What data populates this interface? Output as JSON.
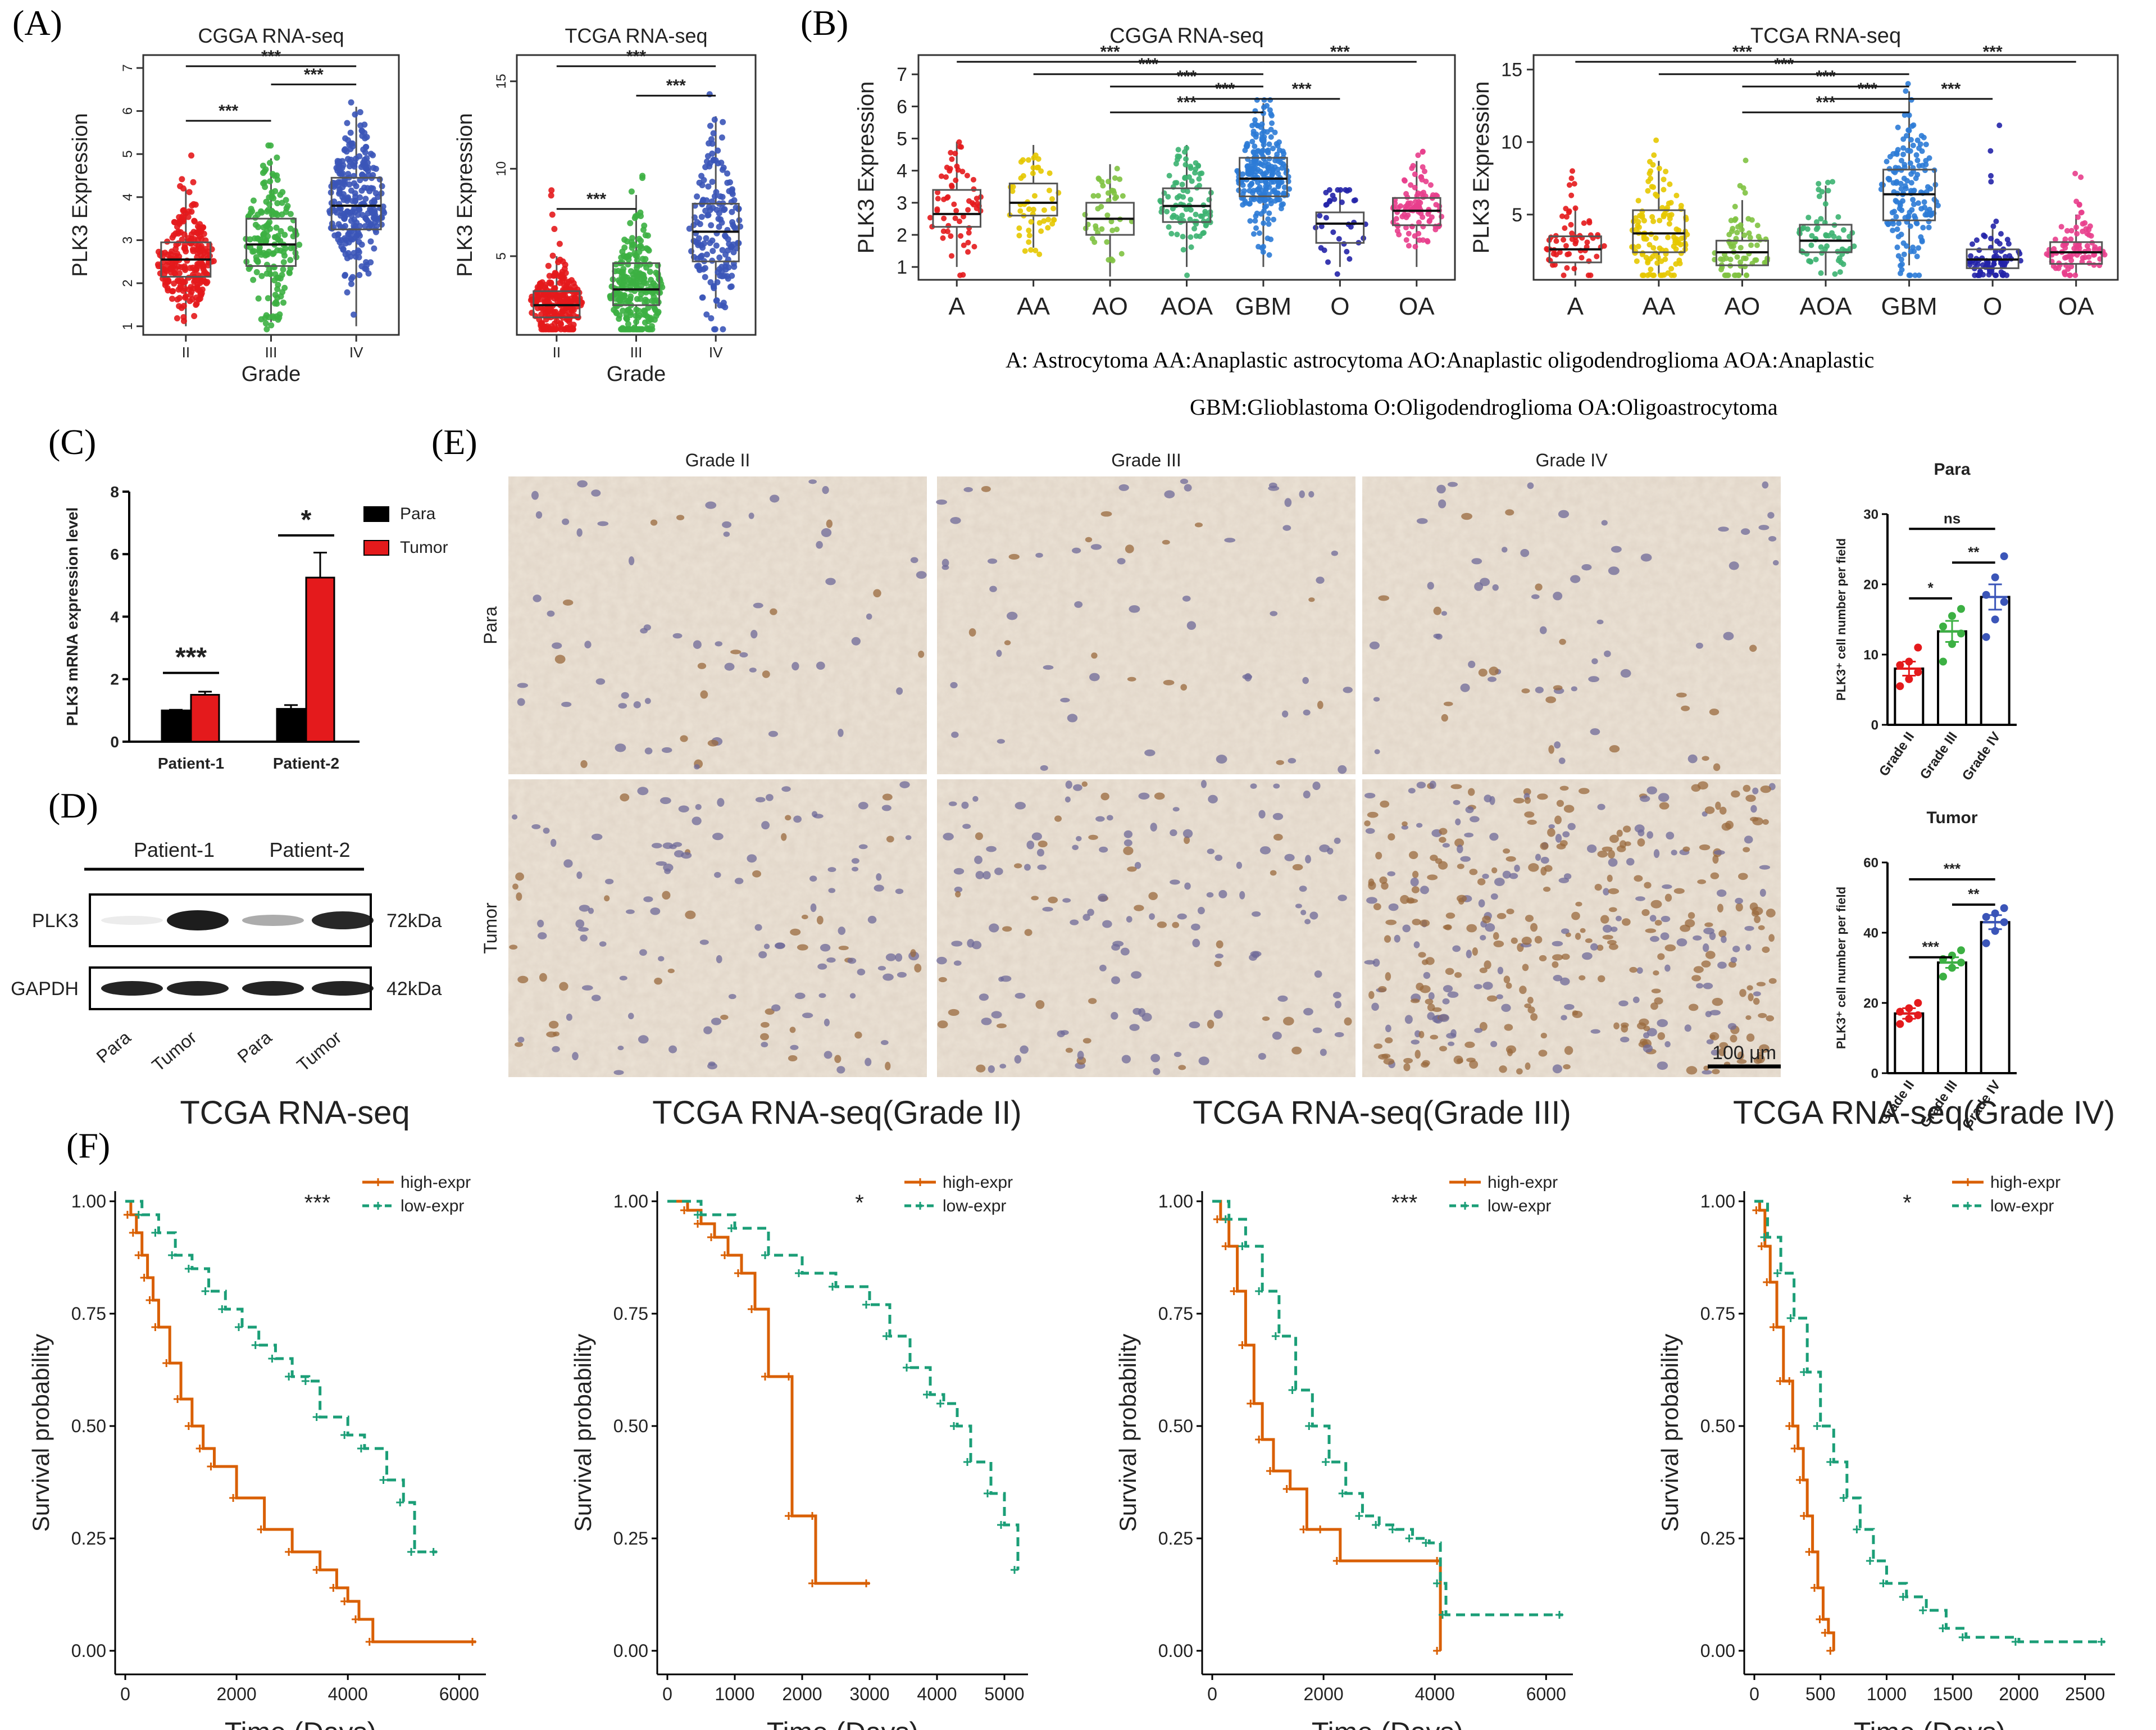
{
  "figure": {
    "panel_labels": [
      "(A)",
      "(B)",
      "(C)",
      "(D)",
      "(E)",
      "(F)"
    ],
    "colors": {
      "II": "#e41a1c",
      "III": "#3cb043",
      "IV": "#3b55b8",
      "A": "#e41a1c",
      "AA": "#e6c800",
      "AO": "#7fc241",
      "AOA": "#3cb371",
      "GBM": "#2c7bd6",
      "O": "#2323a8",
      "OA": "#e83e8c",
      "para_bar": "#000000",
      "tumor_bar": "#e41a1c",
      "km_high": "#d95f02",
      "km_low": "#1b9e77"
    }
  },
  "panel_a": {
    "charts": [
      {
        "title": "CGGA RNA-seq",
        "ylabel": "PLK3 Expression",
        "xlabel": "Grade",
        "yticks": [
          "1",
          "2",
          "3",
          "4",
          "5",
          "6",
          "7"
        ],
        "ylim": [
          0.8,
          7.3
        ],
        "categories": [
          "II",
          "III",
          "IV"
        ],
        "boxes": [
          {
            "q1": 2.15,
            "med": 2.55,
            "q3": 2.95,
            "lo": 1.0,
            "hi": 4.2,
            "n": 230,
            "maxv": 5.2
          },
          {
            "q1": 2.4,
            "med": 2.9,
            "q3": 3.5,
            "lo": 1.1,
            "hi": 4.9,
            "n": 170,
            "maxv": 5.2
          },
          {
            "q1": 3.25,
            "med": 3.8,
            "q3": 4.45,
            "lo": 1.0,
            "hi": 6.1,
            "n": 260,
            "maxv": 6.2
          }
        ],
        "sig": [
          "***",
          "***",
          "***"
        ]
      },
      {
        "title": "TCGA RNA-seq",
        "ylabel": "PLK3 Expression",
        "xlabel": "Grade",
        "yticks": [
          "5",
          "10",
          "15"
        ],
        "ylim": [
          0.5,
          16.5
        ],
        "categories": [
          "II",
          "III",
          "IV"
        ],
        "boxes": [
          {
            "q1": 1.5,
            "med": 2.2,
            "q3": 3.0,
            "lo": 0.8,
            "hi": 5.0,
            "n": 250,
            "maxv": 9.5
          },
          {
            "q1": 2.2,
            "med": 3.1,
            "q3": 4.6,
            "lo": 0.8,
            "hi": 8.5,
            "n": 250,
            "maxv": 10.5
          },
          {
            "q1": 4.7,
            "med": 6.4,
            "q3": 8.0,
            "lo": 2.0,
            "hi": 13.0,
            "n": 170,
            "maxv": 14.8
          }
        ],
        "sig": [
          "***",
          "***",
          "***"
        ]
      }
    ]
  },
  "panel_b": {
    "charts": [
      {
        "title": "CGGA RNA-seq",
        "ylabel": "PLK3 Expression",
        "yticks": [
          "1",
          "2",
          "3",
          "4",
          "5",
          "6",
          "7"
        ],
        "ylim": [
          0.6,
          7.6
        ],
        "categories": [
          "A",
          "AA",
          "AO",
          "AOA",
          "GBM",
          "O",
          "OA"
        ],
        "boxes": [
          {
            "q1": 2.25,
            "med": 2.65,
            "q3": 3.4,
            "lo": 1.0,
            "hi": 4.9,
            "n": 60,
            "maxv": 4.9
          },
          {
            "q1": 2.6,
            "med": 3.0,
            "q3": 3.6,
            "lo": 1.6,
            "hi": 4.8,
            "n": 50,
            "maxv": 5.3
          },
          {
            "q1": 2.0,
            "med": 2.5,
            "q3": 3.0,
            "lo": 0.7,
            "hi": 4.2,
            "n": 40,
            "maxv": 4.2
          },
          {
            "q1": 2.4,
            "med": 2.9,
            "q3": 3.45,
            "lo": 1.0,
            "hi": 4.8,
            "n": 90,
            "maxv": 4.9
          },
          {
            "q1": 3.2,
            "med": 3.75,
            "q3": 4.4,
            "lo": 1.0,
            "hi": 6.1,
            "n": 250,
            "maxv": 6.2
          },
          {
            "q1": 1.75,
            "med": 2.35,
            "q3": 2.7,
            "lo": 1.0,
            "hi": 3.4,
            "n": 35,
            "maxv": 3.4
          },
          {
            "q1": 2.3,
            "med": 2.75,
            "q3": 3.15,
            "lo": 1.0,
            "hi": 4.3,
            "n": 100,
            "maxv": 5.0
          }
        ],
        "sig": [
          "***",
          "***",
          "***",
          "***",
          "***",
          "***",
          "***"
        ]
      },
      {
        "title": "TCGA RNA-seq",
        "ylabel": "PLK3 Expression",
        "yticks": [
          "5",
          "10",
          "15"
        ],
        "ylim": [
          0.5,
          16.0
        ],
        "categories": [
          "A",
          "AA",
          "AO",
          "AOA",
          "GBM",
          "O",
          "OA"
        ],
        "boxes": [
          {
            "q1": 1.7,
            "med": 2.6,
            "q3": 3.5,
            "lo": 0.8,
            "hi": 5.5,
            "n": 60,
            "maxv": 9.0
          },
          {
            "q1": 2.4,
            "med": 3.7,
            "q3": 5.3,
            "lo": 0.8,
            "hi": 8.7,
            "n": 120,
            "maxv": 10.5
          },
          {
            "q1": 1.5,
            "med": 2.4,
            "q3": 3.2,
            "lo": 0.8,
            "hi": 6.0,
            "n": 70,
            "maxv": 9.9
          },
          {
            "q1": 2.4,
            "med": 3.2,
            "q3": 4.3,
            "lo": 0.8,
            "hi": 7.0,
            "n": 60,
            "maxv": 7.5
          },
          {
            "q1": 4.6,
            "med": 6.4,
            "q3": 8.1,
            "lo": 1.5,
            "hi": 13.5,
            "n": 160,
            "maxv": 14.5
          },
          {
            "q1": 1.3,
            "med": 1.9,
            "q3": 2.6,
            "lo": 0.8,
            "hi": 4.0,
            "n": 80,
            "maxv": 11.3
          },
          {
            "q1": 1.6,
            "med": 2.4,
            "q3": 3.1,
            "lo": 0.8,
            "hi": 5.0,
            "n": 90,
            "maxv": 9.0
          }
        ],
        "sig": [
          "***",
          "***",
          "***",
          "***",
          "***",
          "***",
          "***"
        ]
      }
    ],
    "legend_line1": "A: Astrocytoma    AA:Anaplastic astrocytoma    AO:Anaplastic oligodendroglioma    AOA:Anaplastic",
    "legend_line2": "GBM:Glioblastoma  O:Oligodendroglioma  OA:Oligoastrocytoma"
  },
  "panel_c": {
    "ylabel": "PLK3 mRNA expression level",
    "yticks": [
      "0",
      "2",
      "4",
      "6",
      "8"
    ],
    "ylim": [
      0,
      8
    ],
    "categories": [
      "Patient-1",
      "Patient-2"
    ],
    "series": [
      {
        "name": "Para",
        "values": [
          1.0,
          1.05
        ],
        "err": [
          0.02,
          0.12
        ]
      },
      {
        "name": "Tumor",
        "values": [
          1.5,
          5.25
        ],
        "err": [
          0.1,
          0.8
        ]
      }
    ],
    "sig": [
      "***",
      "*"
    ]
  },
  "panel_d": {
    "groups": [
      "Patient-1",
      "Patient-2"
    ],
    "rows": [
      {
        "name": "PLK3",
        "kda": "72kDa"
      },
      {
        "name": "GAPDH",
        "kda": "42kDa"
      }
    ],
    "lanes": [
      "Para",
      "Tumor",
      "Para",
      "Tumor"
    ]
  },
  "panel_e": {
    "col_labels": [
      "Grade II",
      "Grade III",
      "Grade IV"
    ],
    "row_labels": [
      "Para",
      "Tumor"
    ],
    "scale_bar": "100 μm",
    "charts": [
      {
        "title": "Para",
        "ylabel": "PLK3⁺ cell number per field",
        "yticks": [
          "0",
          "10",
          "20",
          "30"
        ],
        "ylim": [
          0,
          30
        ],
        "categories": [
          "Grade II",
          "Grade III",
          "Grade IV"
        ],
        "values": [
          8,
          13.3,
          18.2
        ],
        "err": [
          1.0,
          1.5,
          1.8
        ],
        "points": [
          [
            5.5,
            6.5,
            7.5,
            8.5,
            9.0,
            11.0
          ],
          [
            9.0,
            11.5,
            13.0,
            14.0,
            15.5,
            16.5
          ],
          [
            12.5,
            15.0,
            17.5,
            18.5,
            21.0,
            24.0
          ]
        ],
        "sig": [
          "*",
          "**",
          "ns"
        ]
      },
      {
        "title": "Tumor",
        "ylabel": "PLK3⁺ cell number per field",
        "yticks": [
          "0",
          "20",
          "40",
          "60"
        ],
        "ylim": [
          0,
          60
        ],
        "categories": [
          "Grade II",
          "Grade III",
          "Grade IV"
        ],
        "values": [
          17,
          31.5,
          43
        ],
        "err": [
          1.5,
          1.5,
          2.0
        ],
        "points": [
          [
            14.0,
            15.5,
            16.5,
            17.5,
            18.5,
            20.0
          ],
          [
            27.5,
            30.0,
            31.5,
            32.5,
            33.5,
            35.0
          ],
          [
            37.0,
            40.5,
            43.0,
            44.5,
            45.5,
            47.0
          ]
        ],
        "sig": [
          "***",
          "**",
          "***"
        ]
      }
    ]
  },
  "panel_f": {
    "ylabel": "Survival probability",
    "xlabel": "Time (Days)",
    "yticks": [
      "0.00",
      "0.25",
      "0.50",
      "0.75",
      "1.00"
    ],
    "legend": {
      "high": "high-expr",
      "low": "low-expr"
    },
    "charts": [
      {
        "title": "TCGA RNA-seq",
        "sig": "***",
        "xticks": [
          "0",
          "2000",
          "4000",
          "6000"
        ],
        "xmax": 6300,
        "high": [
          [
            0,
            1.0
          ],
          [
            100,
            0.97
          ],
          [
            200,
            0.93
          ],
          [
            300,
            0.88
          ],
          [
            400,
            0.83
          ],
          [
            500,
            0.78
          ],
          [
            600,
            0.72
          ],
          [
            800,
            0.64
          ],
          [
            1000,
            0.56
          ],
          [
            1200,
            0.5
          ],
          [
            1400,
            0.45
          ],
          [
            1600,
            0.41
          ],
          [
            2000,
            0.34
          ],
          [
            2500,
            0.27
          ],
          [
            3000,
            0.22
          ],
          [
            3500,
            0.18
          ],
          [
            3800,
            0.14
          ],
          [
            4000,
            0.11
          ],
          [
            4200,
            0.07
          ],
          [
            4450,
            0.02
          ],
          [
            6300,
            0.02
          ]
        ],
        "low": [
          [
            0,
            1.0
          ],
          [
            300,
            0.97
          ],
          [
            600,
            0.93
          ],
          [
            900,
            0.88
          ],
          [
            1200,
            0.85
          ],
          [
            1500,
            0.8
          ],
          [
            1800,
            0.76
          ],
          [
            2100,
            0.72
          ],
          [
            2400,
            0.68
          ],
          [
            2700,
            0.65
          ],
          [
            3000,
            0.61
          ],
          [
            3300,
            0.6
          ],
          [
            3500,
            0.52
          ],
          [
            4000,
            0.48
          ],
          [
            4300,
            0.45
          ],
          [
            4700,
            0.38
          ],
          [
            5000,
            0.33
          ],
          [
            5200,
            0.22
          ],
          [
            5600,
            0.22
          ]
        ]
      },
      {
        "title": "TCGA RNA-seq(Grade II)",
        "sig": "*",
        "xticks": [
          "0",
          "1000",
          "2000",
          "3000",
          "4000",
          "5000"
        ],
        "xmax": 5200,
        "high": [
          [
            0,
            1.0
          ],
          [
            300,
            0.98
          ],
          [
            500,
            0.95
          ],
          [
            700,
            0.92
          ],
          [
            900,
            0.88
          ],
          [
            1100,
            0.84
          ],
          [
            1300,
            0.76
          ],
          [
            1500,
            0.61
          ],
          [
            1850,
            0.61
          ],
          [
            1850,
            0.3
          ],
          [
            2200,
            0.3
          ],
          [
            2200,
            0.15
          ],
          [
            3000,
            0.15
          ]
        ],
        "low": [
          [
            0,
            1.0
          ],
          [
            500,
            0.97
          ],
          [
            1000,
            0.94
          ],
          [
            1500,
            0.88
          ],
          [
            2000,
            0.84
          ],
          [
            2500,
            0.81
          ],
          [
            3000,
            0.77
          ],
          [
            3300,
            0.7
          ],
          [
            3600,
            0.63
          ],
          [
            3900,
            0.57
          ],
          [
            4100,
            0.55
          ],
          [
            4300,
            0.5
          ],
          [
            4500,
            0.42
          ],
          [
            4800,
            0.35
          ],
          [
            5000,
            0.28
          ],
          [
            5200,
            0.18
          ]
        ]
      },
      {
        "title": "TCGA RNA-seq(Grade III)",
        "sig": "***",
        "xticks": [
          "0",
          "2000",
          "4000",
          "6000"
        ],
        "xmax": 6300,
        "high": [
          [
            0,
            1.0
          ],
          [
            150,
            0.96
          ],
          [
            300,
            0.9
          ],
          [
            450,
            0.8
          ],
          [
            600,
            0.68
          ],
          [
            750,
            0.55
          ],
          [
            900,
            0.47
          ],
          [
            1100,
            0.4
          ],
          [
            1400,
            0.36
          ],
          [
            1700,
            0.27
          ],
          [
            2000,
            0.27
          ],
          [
            2300,
            0.2
          ],
          [
            4100,
            0.2
          ],
          [
            4100,
            0.0
          ]
        ],
        "low": [
          [
            0,
            1.0
          ],
          [
            300,
            0.96
          ],
          [
            600,
            0.9
          ],
          [
            900,
            0.8
          ],
          [
            1200,
            0.7
          ],
          [
            1500,
            0.58
          ],
          [
            1800,
            0.5
          ],
          [
            2100,
            0.42
          ],
          [
            2400,
            0.35
          ],
          [
            2700,
            0.3
          ],
          [
            3000,
            0.28
          ],
          [
            3300,
            0.27
          ],
          [
            3600,
            0.25
          ],
          [
            3900,
            0.24
          ],
          [
            4100,
            0.15
          ],
          [
            4200,
            0.08
          ],
          [
            6300,
            0.08
          ]
        ]
      },
      {
        "title": "TCGA RNA-seq(Grade IV)",
        "sig": "*",
        "xticks": [
          "0",
          "500",
          "1000",
          "1500",
          "2000",
          "2500"
        ],
        "xmax": 2650,
        "high": [
          [
            0,
            1.0
          ],
          [
            40,
            0.98
          ],
          [
            80,
            0.9
          ],
          [
            120,
            0.82
          ],
          [
            170,
            0.72
          ],
          [
            220,
            0.6
          ],
          [
            290,
            0.6
          ],
          [
            290,
            0.5
          ],
          [
            330,
            0.45
          ],
          [
            370,
            0.38
          ],
          [
            400,
            0.3
          ],
          [
            440,
            0.22
          ],
          [
            480,
            0.14
          ],
          [
            520,
            0.07
          ],
          [
            560,
            0.04
          ],
          [
            600,
            0.0
          ]
        ],
        "low": [
          [
            0,
            1.0
          ],
          [
            100,
            0.92
          ],
          [
            200,
            0.84
          ],
          [
            300,
            0.74
          ],
          [
            400,
            0.62
          ],
          [
            500,
            0.5
          ],
          [
            600,
            0.42
          ],
          [
            700,
            0.34
          ],
          [
            800,
            0.27
          ],
          [
            900,
            0.2
          ],
          [
            1000,
            0.15
          ],
          [
            1150,
            0.12
          ],
          [
            1300,
            0.09
          ],
          [
            1450,
            0.05
          ],
          [
            1600,
            0.03
          ],
          [
            2000,
            0.02
          ],
          [
            2650,
            0.02
          ]
        ]
      }
    ]
  }
}
